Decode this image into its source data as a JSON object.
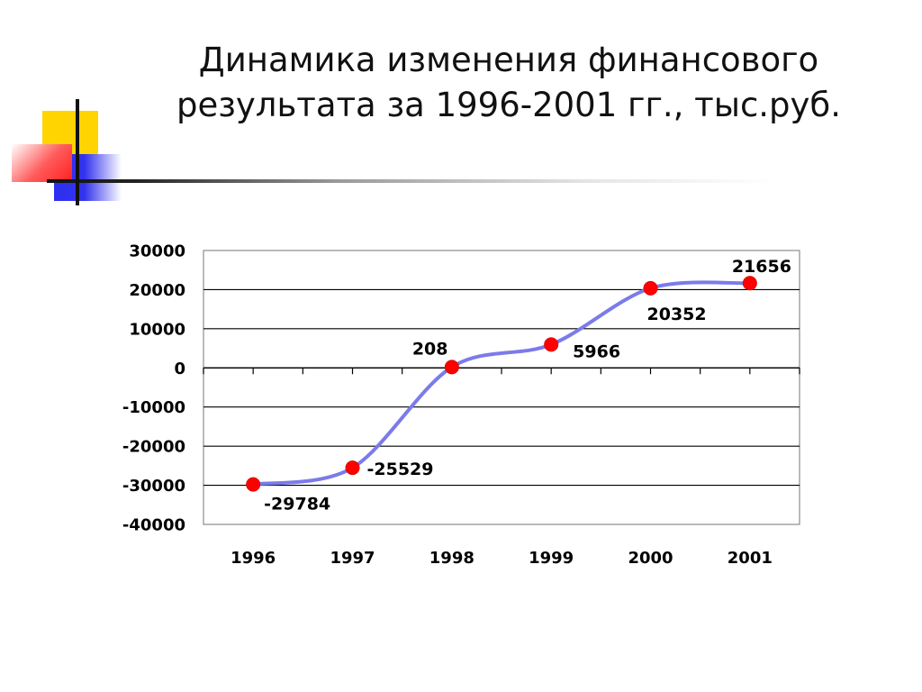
{
  "slide": {
    "title_line1": "Динамика изменения финансового",
    "title_line2": "результата за 1996-2001 гг., тыс.руб."
  },
  "colors": {
    "line": "#7b7bea",
    "marker": "#ff0000",
    "deco_yellow": "#ffd400",
    "deco_blue": "#2e2ef0",
    "deco_red": "#ff2020"
  },
  "chart_data": {
    "type": "line",
    "title": "",
    "xlabel": "",
    "ylabel": "",
    "categories": [
      "1996",
      "1997",
      "1998",
      "1999",
      "2000",
      "2001"
    ],
    "series": [
      {
        "values": [
          -29784,
          -25529,
          208,
          5966,
          20352,
          21656
        ],
        "smooth": true,
        "markers": true
      }
    ],
    "data_labels": [
      "-29784",
      "-25529",
      "208",
      "5966",
      "20352",
      "21656"
    ],
    "ylim": [
      -40000,
      30000
    ],
    "yticks": [
      30000,
      20000,
      10000,
      0,
      -10000,
      -20000,
      -30000,
      -40000
    ],
    "ytick_labels": [
      "30000",
      "20000",
      "10000",
      "0",
      "-10000",
      "-20000",
      "-30000",
      "-40000"
    ],
    "grid": true,
    "legend": "none"
  }
}
